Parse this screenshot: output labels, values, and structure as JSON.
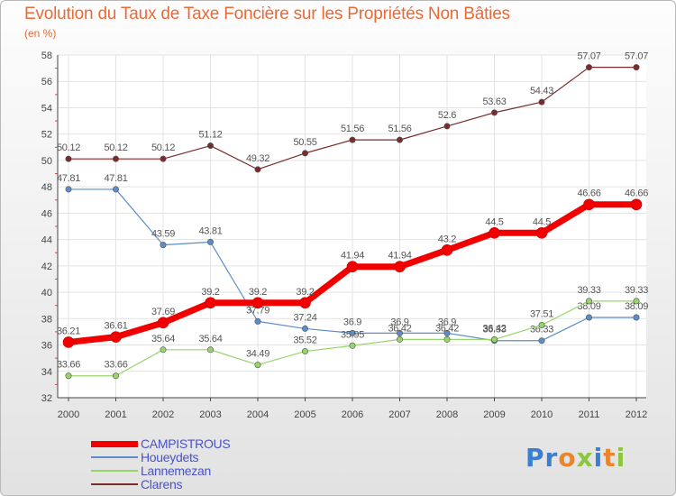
{
  "title": "Evolution du Taux de Taxe Foncière sur les Propriétés Non Bâties",
  "subtitle": "(en %)",
  "logo": {
    "letters": [
      {
        "ch": "P",
        "color": "#3a7fd0"
      },
      {
        "ch": "r",
        "color": "#3a7fd0"
      },
      {
        "ch": "o",
        "color": "#e9852d"
      },
      {
        "ch": "x",
        "color": "#8cc63f"
      },
      {
        "ch": "i",
        "color": "#3a7fd0"
      },
      {
        "ch": "t",
        "color": "#e9852d"
      },
      {
        "ch": "i",
        "color": "#8cc63f"
      }
    ]
  },
  "chart_data": {
    "type": "line",
    "title": "Evolution du Taux de Taxe Foncière sur les Propriétés Non Bâties",
    "ylabel": "(en %)",
    "x": [
      "2000",
      "2001",
      "2002",
      "2003",
      "2004",
      "2005",
      "2006",
      "2007",
      "2008",
      "2009",
      "2010",
      "2011",
      "2012"
    ],
    "ylim": [
      32,
      58
    ],
    "yticks": [
      32,
      34,
      36,
      38,
      40,
      42,
      44,
      46,
      48,
      50,
      52,
      54,
      56,
      58
    ],
    "grid": true,
    "legend_position": "bottom-left",
    "series": [
      {
        "name": "CAMPISTROUS",
        "color": "#f20000",
        "emphasis": true,
        "values": [
          36.21,
          36.61,
          37.69,
          39.2,
          39.2,
          39.2,
          41.94,
          41.94,
          43.2,
          44.5,
          44.5,
          46.66,
          46.66
        ]
      },
      {
        "name": "Houeydets",
        "color": "#5b8ec9",
        "emphasis": false,
        "values": [
          47.81,
          47.81,
          43.59,
          43.81,
          37.79,
          37.24,
          36.9,
          36.9,
          36.9,
          36.33,
          36.33,
          38.09,
          38.09
        ]
      },
      {
        "name": "Lannemezan",
        "color": "#98d46c",
        "emphasis": false,
        "values": [
          33.66,
          33.66,
          35.64,
          35.64,
          34.49,
          35.52,
          35.95,
          36.42,
          36.42,
          36.42,
          37.51,
          39.33,
          39.33
        ]
      },
      {
        "name": "Clarens",
        "color": "#7a2c2c",
        "emphasis": false,
        "values": [
          50.12,
          50.12,
          50.12,
          51.12,
          49.32,
          50.55,
          51.56,
          51.56,
          52.6,
          53.63,
          54.43,
          57.07,
          57.07
        ]
      }
    ]
  }
}
